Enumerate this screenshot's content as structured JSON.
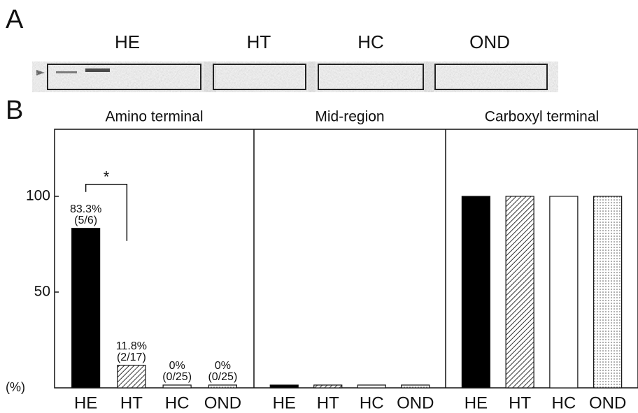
{
  "panel_labels": [
    "A",
    "B"
  ],
  "blot": {
    "lanes": [
      "HE",
      "HT",
      "HC",
      "OND"
    ]
  },
  "significance": "*",
  "chart_data": [
    {
      "type": "bar",
      "title": "Amino terminal",
      "ylabel": "(%)",
      "categories": [
        "HE",
        "HT",
        "HC",
        "OND"
      ],
      "values": [
        83.3,
        11.8,
        0,
        0
      ],
      "value_labels": [
        "83.3%",
        "11.8%",
        "0%",
        "0%"
      ],
      "counts": [
        "(5/6)",
        "(2/17)",
        "(0/25)",
        "(0/25)"
      ],
      "fills": [
        "solid",
        "hatch",
        "open",
        "dots"
      ],
      "ylim": [
        0,
        135
      ],
      "yticks": [
        50,
        100
      ]
    },
    {
      "type": "bar",
      "title": "Mid-region",
      "categories": [
        "HE",
        "HT",
        "HC",
        "OND"
      ],
      "values": [
        0,
        0,
        0,
        0
      ],
      "fills": [
        "solid",
        "hatch",
        "open",
        "dots"
      ],
      "ylim": [
        0,
        135
      ]
    },
    {
      "type": "bar",
      "title": "Carboxyl terminal",
      "categories": [
        "HE",
        "HT",
        "HC",
        "OND"
      ],
      "values": [
        100,
        100,
        100,
        100
      ],
      "fills": [
        "solid",
        "hatch",
        "open",
        "dots"
      ],
      "ylim": [
        0,
        135
      ]
    }
  ]
}
